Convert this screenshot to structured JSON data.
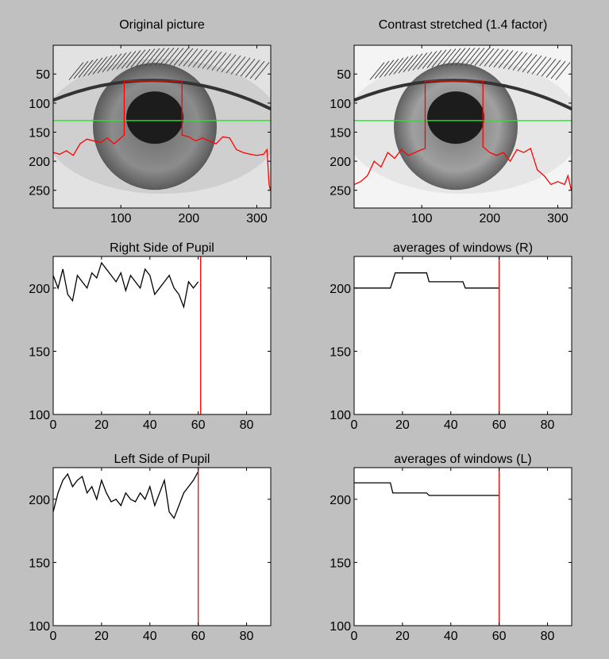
{
  "chart_data": [
    {
      "type": "image",
      "title": "Original picture",
      "xlim": [
        0.5,
        320.5
      ],
      "ylim": [
        0.5,
        280.5
      ],
      "xticks": [
        100,
        200,
        300
      ],
      "yticks": [
        50,
        100,
        150,
        200,
        250
      ],
      "series": [
        {
          "color": "#00ff00",
          "x": [
            1,
            320
          ],
          "values": [
            130,
            130
          ]
        },
        {
          "color": "#ff0000",
          "x": [
            1,
            10,
            20,
            30,
            40,
            50,
            60,
            70,
            80,
            90,
            100,
            105,
            105,
            190,
            190,
            200,
            210,
            220,
            230,
            240,
            250,
            260,
            270,
            280,
            290,
            300,
            310,
            315,
            318,
            320
          ],
          "values": [
            185,
            188,
            182,
            190,
            170,
            162,
            165,
            168,
            160,
            170,
            160,
            155,
            62,
            62,
            155,
            158,
            165,
            160,
            165,
            170,
            158,
            160,
            180,
            185,
            188,
            190,
            188,
            180,
            240,
            250
          ]
        }
      ]
    },
    {
      "type": "image",
      "title": "Contrast stretched (1.4 factor)",
      "xlim": [
        0.5,
        320.5
      ],
      "ylim": [
        0.5,
        280.5
      ],
      "xticks": [
        100,
        200,
        300
      ],
      "yticks": [
        50,
        100,
        150,
        200,
        250
      ],
      "series": [
        {
          "color": "#00ff00",
          "x": [
            1,
            320
          ],
          "values": [
            130,
            130
          ]
        },
        {
          "color": "#ff0000",
          "x": [
            1,
            10,
            20,
            30,
            40,
            50,
            60,
            70,
            80,
            90,
            100,
            105,
            105,
            190,
            190,
            200,
            210,
            220,
            230,
            240,
            250,
            260,
            270,
            280,
            290,
            300,
            310,
            315,
            320
          ],
          "values": [
            240,
            235,
            225,
            200,
            210,
            185,
            195,
            180,
            190,
            185,
            180,
            178,
            62,
            62,
            175,
            185,
            190,
            185,
            200,
            180,
            185,
            178,
            215,
            225,
            240,
            235,
            240,
            225,
            250
          ]
        }
      ]
    },
    {
      "type": "line",
      "title": "Right Side of Pupil",
      "xlim": [
        0,
        90
      ],
      "ylim": [
        100,
        225
      ],
      "xticks": [
        0,
        20,
        40,
        60,
        80
      ],
      "yticks": [
        100,
        150,
        200
      ],
      "series": [
        {
          "color": "#000000",
          "x": [
            0,
            2,
            4,
            6,
            8,
            10,
            12,
            14,
            16,
            18,
            20,
            22,
            24,
            26,
            28,
            30,
            32,
            34,
            36,
            38,
            40,
            42,
            44,
            46,
            48,
            50,
            52,
            54,
            56,
            58,
            60
          ],
          "values": [
            210,
            200,
            215,
            195,
            190,
            210,
            205,
            200,
            212,
            208,
            220,
            215,
            210,
            205,
            212,
            198,
            210,
            205,
            200,
            215,
            210,
            195,
            200,
            205,
            210,
            200,
            195,
            185,
            205,
            200,
            205
          ]
        },
        {
          "color": "#ff0000",
          "x": [
            61,
            61
          ],
          "values": [
            100,
            225
          ]
        }
      ]
    },
    {
      "type": "line",
      "title": "averages of windows (R)",
      "xlim": [
        0,
        90
      ],
      "ylim": [
        100,
        225
      ],
      "xticks": [
        0,
        20,
        40,
        60,
        80
      ],
      "yticks": [
        100,
        150,
        200
      ],
      "series": [
        {
          "color": "#000000",
          "x": [
            0,
            15,
            17,
            30,
            31,
            45,
            46,
            60
          ],
          "values": [
            200,
            200,
            212,
            212,
            205,
            205,
            200,
            200
          ]
        },
        {
          "color": "#ff0000",
          "x": [
            60,
            60
          ],
          "values": [
            100,
            225
          ]
        }
      ]
    },
    {
      "type": "line",
      "title": "Left Side of Pupil",
      "xlim": [
        0,
        90
      ],
      "ylim": [
        100,
        225
      ],
      "xticks": [
        0,
        20,
        40,
        60,
        80
      ],
      "yticks": [
        100,
        150,
        200
      ],
      "series": [
        {
          "color": "#000000",
          "x": [
            0,
            2,
            4,
            6,
            8,
            10,
            12,
            14,
            16,
            18,
            20,
            22,
            24,
            26,
            28,
            30,
            32,
            34,
            36,
            38,
            40,
            42,
            44,
            46,
            48,
            50,
            52,
            54,
            56,
            58,
            60
          ],
          "values": [
            190,
            205,
            215,
            220,
            210,
            215,
            218,
            205,
            210,
            200,
            215,
            205,
            198,
            200,
            195,
            205,
            200,
            198,
            205,
            200,
            210,
            195,
            205,
            215,
            190,
            185,
            195,
            205,
            210,
            215,
            222
          ]
        },
        {
          "color": "#ff0000",
          "x": [
            60,
            60
          ],
          "values": [
            100,
            225
          ]
        }
      ]
    },
    {
      "type": "line",
      "title": "averages of windows (L)",
      "xlim": [
        0,
        90
      ],
      "ylim": [
        100,
        225
      ],
      "xticks": [
        0,
        20,
        40,
        60,
        80
      ],
      "yticks": [
        100,
        150,
        200
      ],
      "series": [
        {
          "color": "#000000",
          "x": [
            0,
            15,
            16,
            30,
            31,
            60
          ],
          "values": [
            213,
            213,
            205,
            205,
            203,
            203
          ]
        },
        {
          "color": "#ff0000",
          "x": [
            60,
            60
          ],
          "values": [
            100,
            225
          ]
        }
      ]
    }
  ]
}
